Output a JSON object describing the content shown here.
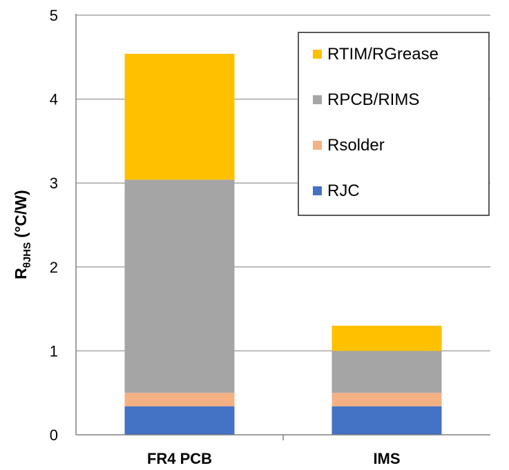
{
  "chart_data": {
    "type": "bar",
    "stacked": true,
    "categories": [
      "FR4 PCB",
      "IMS"
    ],
    "series": [
      {
        "name": "RJC",
        "values": [
          0.34,
          0.34
        ],
        "color": "#4472C4"
      },
      {
        "name": "Rsolder",
        "values": [
          0.16,
          0.16
        ],
        "color": "#F4B183"
      },
      {
        "name": "RPCB/RIMS",
        "values": [
          2.54,
          0.5
        ],
        "color": "#A5A5A5"
      },
      {
        "name": "RTIM/RGrease",
        "values": [
          1.5,
          0.3
        ],
        "color": "#FFC000"
      }
    ],
    "ylabel": {
      "main": "R",
      "sub": "θJHS",
      "unit": " (°C/W)"
    },
    "ylim": [
      0,
      5
    ],
    "yticks": [
      "0",
      "1",
      "2",
      "3",
      "4",
      "5"
    ],
    "grid": true,
    "legend": {
      "position": "top-right",
      "order": [
        "RTIM/RGrease",
        "RPCB/RIMS",
        "Rsolder",
        "RJC"
      ]
    }
  }
}
